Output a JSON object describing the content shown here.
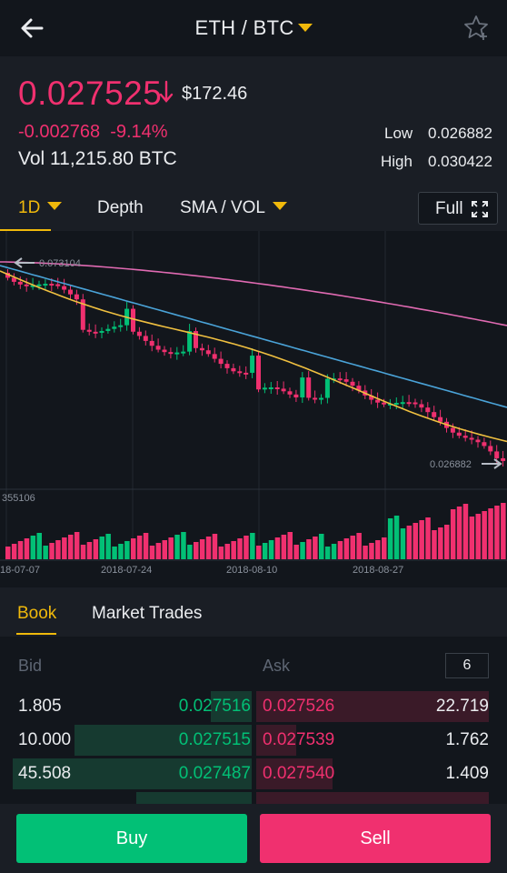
{
  "topbar": {
    "pair": "ETH / BTC"
  },
  "header": {
    "price": "0.027525",
    "usd": "$172.46",
    "change": "-0.002768",
    "change_pct": "-9.14%",
    "vol": "Vol 11,215.80 BTC",
    "low_label": "Low",
    "low_value": "0.026882",
    "high_label": "High",
    "high_value": "0.030422"
  },
  "tabs": {
    "interval": "1D",
    "depth": "Depth",
    "indicators": "SMA / VOL",
    "full": "Full"
  },
  "chart_data": {
    "type": "candlestick",
    "max_label": "0.073104",
    "min_label": "0.026882",
    "volume_label": "355106",
    "x_ticks": [
      "18-07-07",
      "2018-07-24",
      "2018-08-10",
      "2018-08-27"
    ]
  },
  "book": {
    "tab_book": "Book",
    "tab_trades": "Market Trades",
    "bid_label": "Bid",
    "ask_label": "Ask",
    "depth": "6",
    "rows": [
      {
        "bid_amount": "1.805",
        "bid_price": "0.027516",
        "ask_price": "0.027526",
        "ask_amount": "22.719"
      },
      {
        "bid_amount": "10.000",
        "bid_price": "0.027515",
        "ask_price": "0.027539",
        "ask_amount": "1.762"
      },
      {
        "bid_amount": "45.508",
        "bid_price": "0.027487",
        "ask_price": "0.027540",
        "ask_amount": "1.409"
      }
    ]
  },
  "actions": {
    "buy": "Buy",
    "sell": "Sell"
  },
  "colors": {
    "up": "#02c076",
    "down": "#f0306f",
    "accent": "#f0b90b",
    "bg": "#12161c",
    "panel": "#1a1e25"
  }
}
